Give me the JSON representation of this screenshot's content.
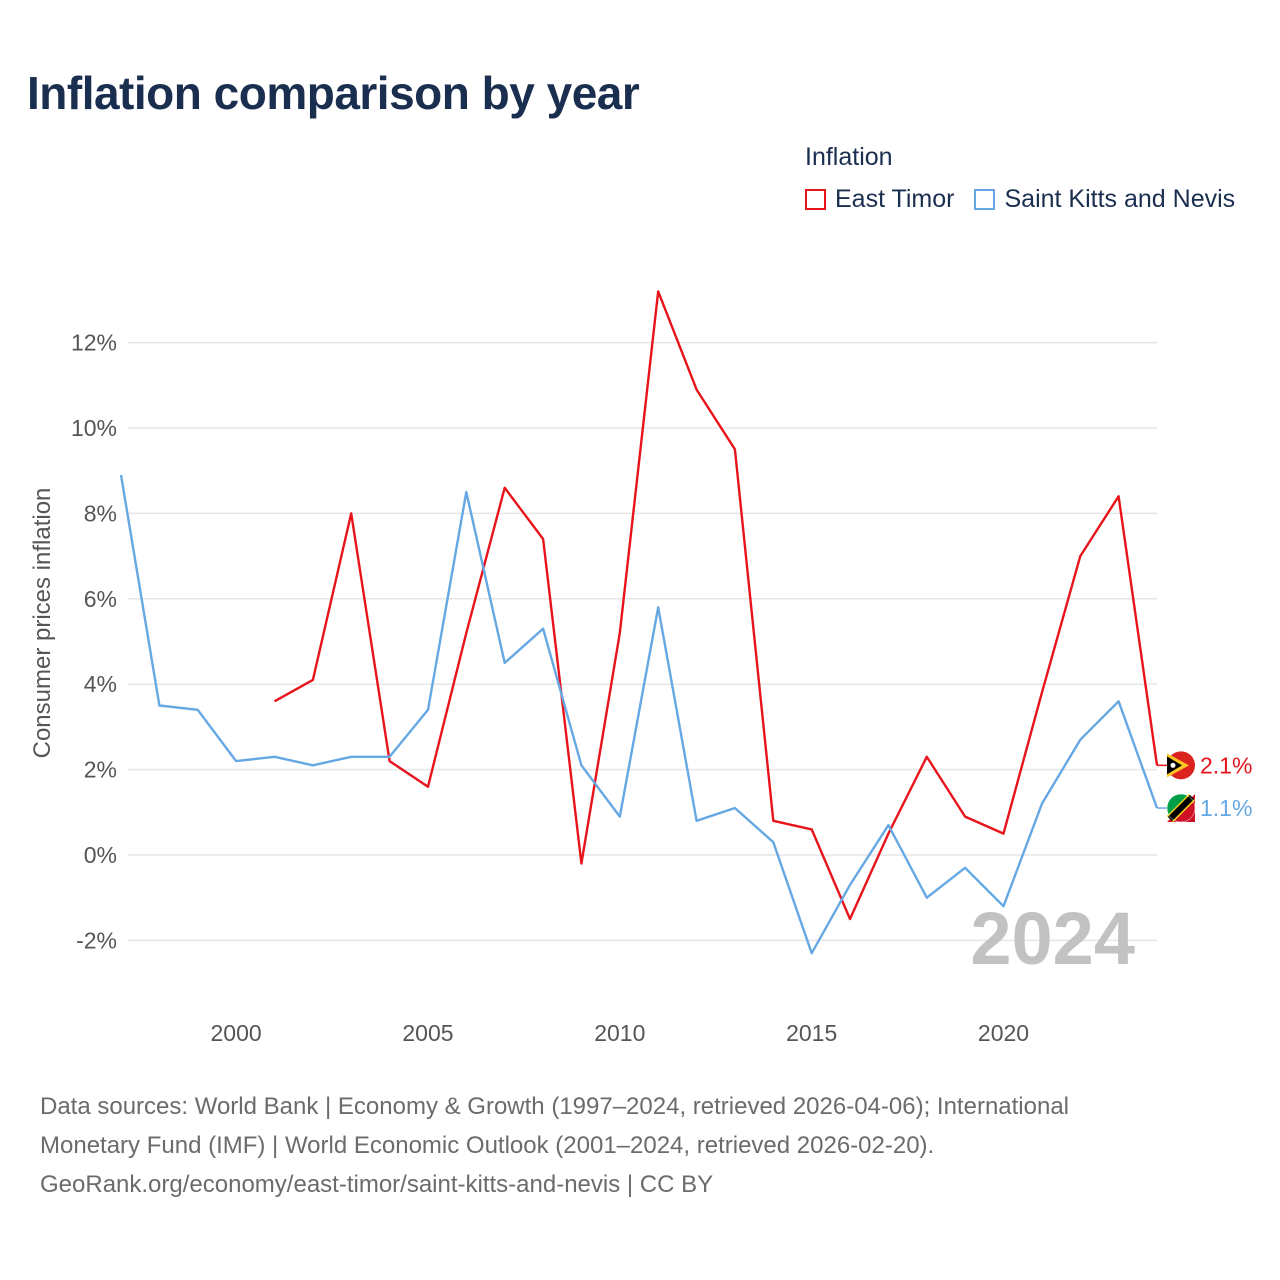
{
  "title": "Inflation comparison by year",
  "legend": {
    "title": "Inflation",
    "items": [
      {
        "label": "East Timor",
        "color": "#e8141b"
      },
      {
        "label": "Saint Kitts and Nevis",
        "color": "#66a8e3"
      }
    ]
  },
  "footer": {
    "line1": "Data sources: World Bank | Economy & Growth (1997–2024, retrieved 2026-04-06); International",
    "line2": "Monetary Fund (IMF) | World Economic Outlook (2001–2024, retrieved 2026-02-20).",
    "line3": "GeoRank.org/economy/east-timor/saint-kitts-and-nevis | CC BY"
  },
  "chart_data": {
    "type": "line",
    "title": "Inflation comparison by year",
    "xlabel": "",
    "ylabel": "Consumer prices inflation",
    "xlim": [
      1997,
      2024
    ],
    "ylim": [
      -3,
      13.5
    ],
    "x_ticks": [
      2000,
      2005,
      2010,
      2015,
      2020
    ],
    "y_ticks": [
      -2,
      0,
      2,
      4,
      6,
      8,
      10,
      12
    ],
    "y_tick_labels": [
      "-2%",
      "0%",
      "2%",
      "4%",
      "6%",
      "8%",
      "10%",
      "12%"
    ],
    "grid": true,
    "year_watermark": "2024",
    "series": [
      {
        "name": "East Timor",
        "color": "#e8141b",
        "end_label": "2.1%",
        "x": [
          2001,
          2002,
          2003,
          2004,
          2005,
          2006,
          2007,
          2008,
          2009,
          2010,
          2011,
          2012,
          2013,
          2014,
          2015,
          2016,
          2017,
          2018,
          2019,
          2020,
          2021,
          2022,
          2023,
          2024
        ],
        "values": [
          3.6,
          4.1,
          8.0,
          2.2,
          1.6,
          5.2,
          8.6,
          7.4,
          -0.2,
          5.2,
          13.2,
          10.9,
          9.5,
          0.8,
          0.6,
          -1.5,
          0.5,
          2.3,
          0.9,
          0.5,
          3.8,
          7.0,
          8.4,
          2.1
        ]
      },
      {
        "name": "Saint Kitts and Nevis",
        "color": "#66a8e3",
        "end_label": "1.1%",
        "x": [
          1997,
          1998,
          1999,
          2000,
          2001,
          2002,
          2003,
          2004,
          2005,
          2006,
          2007,
          2008,
          2009,
          2010,
          2011,
          2012,
          2013,
          2014,
          2015,
          2016,
          2017,
          2018,
          2019,
          2020,
          2021,
          2022,
          2023,
          2024
        ],
        "values": [
          8.9,
          3.5,
          3.4,
          2.2,
          2.3,
          2.1,
          2.3,
          2.3,
          3.4,
          8.5,
          4.5,
          5.3,
          2.1,
          0.9,
          5.8,
          0.8,
          1.1,
          0.3,
          -2.3,
          -0.7,
          0.7,
          -1.0,
          -0.3,
          -1.2,
          1.2,
          2.7,
          3.6,
          1.1
        ]
      }
    ]
  }
}
